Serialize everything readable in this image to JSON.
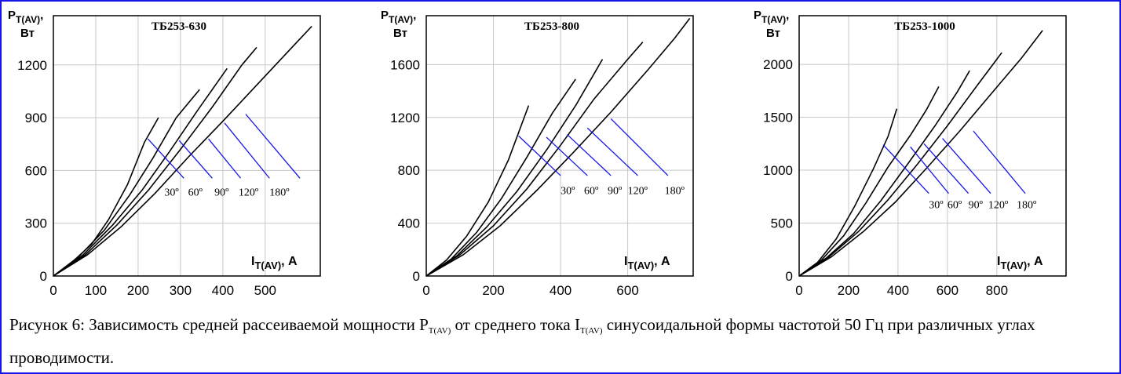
{
  "chart_data": [
    {
      "type": "line",
      "title": "ТБ253-630",
      "ylabel_main": "P",
      "ylabel_sub": "T(AV)",
      "ylabel_comma": ",",
      "ylabel_unit": "Вт",
      "xlabel_main": "I",
      "xlabel_sub": "T(AV)",
      "xlabel_tail": ", А",
      "xlim": [
        0,
        630
      ],
      "ylim": [
        0,
        1480
      ],
      "xticks": [
        0,
        100,
        200,
        300,
        400,
        500
      ],
      "yticks": [
        0,
        300,
        600,
        900,
        1200
      ],
      "series": [
        {
          "label": "30º",
          "points": [
            [
              0,
              0
            ],
            [
              40,
              70
            ],
            [
              90,
              180
            ],
            [
              130,
              320
            ],
            [
              175,
              520
            ],
            [
              215,
              760
            ],
            [
              248,
              900
            ]
          ]
        },
        {
          "label": "60º",
          "points": [
            [
              0,
              0
            ],
            [
              60,
              110
            ],
            [
              120,
              260
            ],
            [
              180,
              460
            ],
            [
              235,
              670
            ],
            [
              290,
              900
            ],
            [
              345,
              1060
            ]
          ]
        },
        {
          "label": "90º",
          "points": [
            [
              0,
              0
            ],
            [
              70,
              120
            ],
            [
              140,
              290
            ],
            [
              210,
              490
            ],
            [
              275,
              710
            ],
            [
              340,
              940
            ],
            [
              410,
              1180
            ]
          ]
        },
        {
          "label": "120º",
          "points": [
            [
              0,
              0
            ],
            [
              75,
              120
            ],
            [
              150,
              290
            ],
            [
              225,
              490
            ],
            [
              300,
              720
            ],
            [
              375,
              960
            ],
            [
              445,
              1200
            ],
            [
              480,
              1300
            ]
          ]
        },
        {
          "label": "180º",
          "points": [
            [
              0,
              0
            ],
            [
              80,
              120
            ],
            [
              160,
              280
            ],
            [
              240,
              470
            ],
            [
              320,
              680
            ],
            [
              400,
              880
            ],
            [
              470,
              1060
            ],
            [
              540,
              1240
            ],
            [
              610,
              1420
            ]
          ]
        }
      ],
      "leader_lines": [
        {
          "from": [
            223,
            780
          ],
          "to": [
            308,
            556
          ]
        },
        {
          "from": [
            297,
            770
          ],
          "to": [
            375,
            556
          ]
        },
        {
          "from": [
            366,
            780
          ],
          "to": [
            442,
            556
          ]
        },
        {
          "from": [
            404,
            870
          ],
          "to": [
            510,
            556
          ]
        },
        {
          "from": [
            454,
            920
          ],
          "to": [
            582,
            556
          ]
        }
      ],
      "annotation_anchors": [
        [
          262,
          456
        ],
        [
          318,
          456
        ],
        [
          380,
          456
        ],
        [
          437,
          456
        ],
        [
          510,
          456
        ]
      ]
    },
    {
      "type": "line",
      "title": "ТБ253-800",
      "ylabel_main": "P",
      "ylabel_sub": "T(AV)",
      "ylabel_comma": ",",
      "ylabel_unit": "Вт",
      "xlabel_main": "I",
      "xlabel_sub": "T(AV)",
      "xlabel_tail": ", А",
      "xlim": [
        0,
        795
      ],
      "ylim": [
        0,
        1970
      ],
      "xticks": [
        0,
        200,
        400,
        600
      ],
      "yticks": [
        0,
        400,
        800,
        1200,
        1600
      ],
      "series": [
        {
          "label": "30º",
          "points": [
            [
              0,
              0
            ],
            [
              60,
              120
            ],
            [
              120,
              300
            ],
            [
              185,
              560
            ],
            [
              245,
              880
            ],
            [
              305,
              1290
            ]
          ]
        },
        {
          "label": "60º",
          "points": [
            [
              0,
              0
            ],
            [
              75,
              130
            ],
            [
              150,
              330
            ],
            [
              225,
              590
            ],
            [
              300,
              900
            ],
            [
              375,
              1230
            ],
            [
              445,
              1490
            ]
          ]
        },
        {
          "label": "90º",
          "points": [
            [
              0,
              0
            ],
            [
              90,
              150
            ],
            [
              180,
              370
            ],
            [
              270,
              640
            ],
            [
              360,
              960
            ],
            [
              445,
              1290
            ],
            [
              525,
              1640
            ]
          ]
        },
        {
          "label": "120º",
          "points": [
            [
              0,
              0
            ],
            [
              100,
              160
            ],
            [
              200,
              380
            ],
            [
              300,
              660
            ],
            [
              400,
              990
            ],
            [
              500,
              1340
            ],
            [
              600,
              1640
            ],
            [
              645,
              1770
            ]
          ]
        },
        {
          "label": "180º",
          "points": [
            [
              0,
              0
            ],
            [
              110,
              160
            ],
            [
              220,
              380
            ],
            [
              330,
              650
            ],
            [
              440,
              940
            ],
            [
              550,
              1240
            ],
            [
              660,
              1560
            ],
            [
              740,
              1800
            ],
            [
              785,
              1950
            ]
          ]
        }
      ],
      "leader_lines": [
        {
          "from": [
            275,
            1060
          ],
          "to": [
            400,
            760
          ]
        },
        {
          "from": [
            358,
            1050
          ],
          "to": [
            480,
            760
          ]
        },
        {
          "from": [
            420,
            1070
          ],
          "to": [
            550,
            760
          ]
        },
        {
          "from": [
            480,
            1120
          ],
          "to": [
            630,
            760
          ]
        },
        {
          "from": [
            550,
            1190
          ],
          "to": [
            720,
            760
          ]
        }
      ],
      "annotation_anchors": [
        [
          400,
          620
        ],
        [
          470,
          620
        ],
        [
          540,
          620
        ],
        [
          600,
          620
        ],
        [
          710,
          620
        ]
      ]
    },
    {
      "type": "line",
      "title": "ТБ253-1000",
      "ylabel_main": "P",
      "ylabel_sub": "T(AV)",
      "ylabel_comma": ",",
      "ylabel_unit": "Вт",
      "xlabel_main": "I",
      "xlabel_sub": "T(AV)",
      "xlabel_tail": ", А",
      "xlim": [
        0,
        1080
      ],
      "ylim": [
        0,
        2460
      ],
      "xticks": [
        0,
        200,
        400,
        600,
        800
      ],
      "yticks": [
        0,
        500,
        1000,
        1500,
        2000
      ],
      "series": [
        {
          "label": "30º",
          "points": [
            [
              0,
              0
            ],
            [
              75,
              130
            ],
            [
              150,
              350
            ],
            [
              225,
              660
            ],
            [
              300,
              1010
            ],
            [
              360,
              1320
            ],
            [
              395,
              1580
            ]
          ]
        },
        {
          "label": "60º",
          "points": [
            [
              0,
              0
            ],
            [
              90,
              150
            ],
            [
              180,
              380
            ],
            [
              270,
              690
            ],
            [
              360,
              1030
            ],
            [
              450,
              1330
            ],
            [
              515,
              1570
            ],
            [
              565,
              1790
            ]
          ]
        },
        {
          "label": "90º",
          "points": [
            [
              0,
              0
            ],
            [
              110,
              170
            ],
            [
              220,
              400
            ],
            [
              330,
              710
            ],
            [
              440,
              1060
            ],
            [
              550,
              1420
            ],
            [
              640,
              1740
            ],
            [
              690,
              1940
            ]
          ]
        },
        {
          "label": "120º",
          "points": [
            [
              0,
              0
            ],
            [
              120,
              180
            ],
            [
              240,
              420
            ],
            [
              360,
              720
            ],
            [
              480,
              1060
            ],
            [
              600,
              1420
            ],
            [
              720,
              1800
            ],
            [
              820,
              2110
            ]
          ]
        },
        {
          "label": "180º",
          "points": [
            [
              0,
              0
            ],
            [
              130,
              180
            ],
            [
              260,
              420
            ],
            [
              390,
              700
            ],
            [
              520,
              1030
            ],
            [
              650,
              1370
            ],
            [
              780,
              1730
            ],
            [
              900,
              2060
            ],
            [
              985,
              2320
            ]
          ]
        }
      ],
      "leader_lines": [
        {
          "from": [
            340,
            1240
          ],
          "to": [
            525,
            780
          ]
        },
        {
          "from": [
            450,
            1220
          ],
          "to": [
            605,
            780
          ]
        },
        {
          "from": [
            505,
            1250
          ],
          "to": [
            685,
            780
          ]
        },
        {
          "from": [
            580,
            1300
          ],
          "to": [
            775,
            780
          ]
        },
        {
          "from": [
            705,
            1370
          ],
          "to": [
            915,
            780
          ]
        }
      ],
      "annotation_anchors": [
        [
          525,
          640
        ],
        [
          600,
          640
        ],
        [
          685,
          640
        ],
        [
          765,
          640
        ],
        [
          880,
          640
        ]
      ]
    }
  ],
  "annotations": [
    "30º",
    "60º",
    "90º",
    "120º",
    "180º"
  ],
  "colors": {
    "frame": "#1515e8",
    "curve": "#000000",
    "leader": "#1515e8",
    "grid": "#c8c8c8",
    "background": "#ffffff"
  },
  "caption": {
    "prefix": "Рисунок 6: Зависимость средней рассеиваемой мощности P",
    "sub1": "T(AV)",
    "mid": " от среднего тока I",
    "sub2": "T(AV)",
    "suffix": " синусоидальной формы частотой 50 Гц при различных углах проводимости."
  }
}
